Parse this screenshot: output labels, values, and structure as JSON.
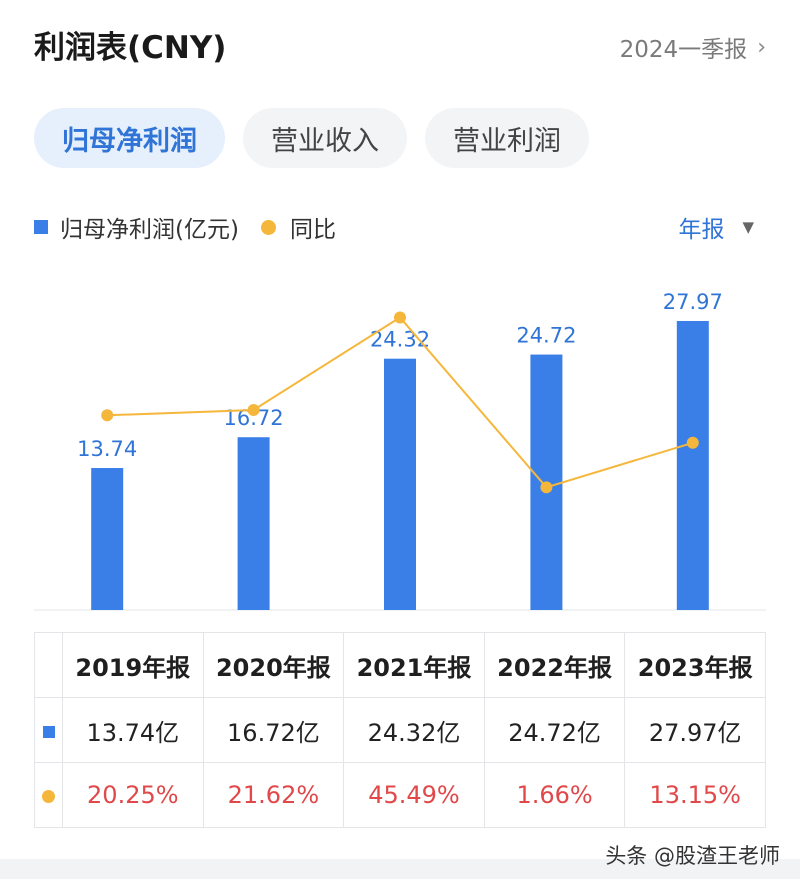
{
  "header": {
    "title": "利润表(CNY)",
    "period": "2024一季报"
  },
  "tabs": [
    {
      "label": "归母净利润",
      "active": true
    },
    {
      "label": "营业收入",
      "active": false
    },
    {
      "label": "营业利润",
      "active": false
    }
  ],
  "legend": {
    "bar_label": "归母净利润(亿元)",
    "line_label": "同比",
    "frequency": "年报"
  },
  "colors": {
    "bar": "#3a7fe8",
    "line": "#f5b73b",
    "accent": "#2f74d6",
    "negative_text": "#e0484a"
  },
  "chart_data": {
    "type": "bar",
    "categories": [
      "2019年报",
      "2020年报",
      "2021年报",
      "2022年报",
      "2023年报"
    ],
    "series": [
      {
        "name": "归母净利润(亿元)",
        "type": "bar",
        "values": [
          13.74,
          16.72,
          24.32,
          24.72,
          27.97
        ],
        "labels": [
          "13.74",
          "16.72",
          "24.32",
          "24.72",
          "27.97"
        ]
      },
      {
        "name": "同比",
        "type": "line",
        "values": [
          20.25,
          21.62,
          45.49,
          1.66,
          13.15
        ]
      }
    ],
    "ylim": [
      0,
      30
    ],
    "line_ylim": [
      -30,
      50
    ]
  },
  "table": {
    "headers": [
      "2019年报",
      "2020年报",
      "2021年报",
      "2022年报",
      "2023年报"
    ],
    "values": [
      "13.74亿",
      "16.72亿",
      "24.32亿",
      "24.72亿",
      "27.97亿"
    ],
    "growth": [
      "20.25%",
      "21.62%",
      "45.49%",
      "1.66%",
      "13.15%"
    ]
  },
  "watermark": "头条 @股渣王老师"
}
